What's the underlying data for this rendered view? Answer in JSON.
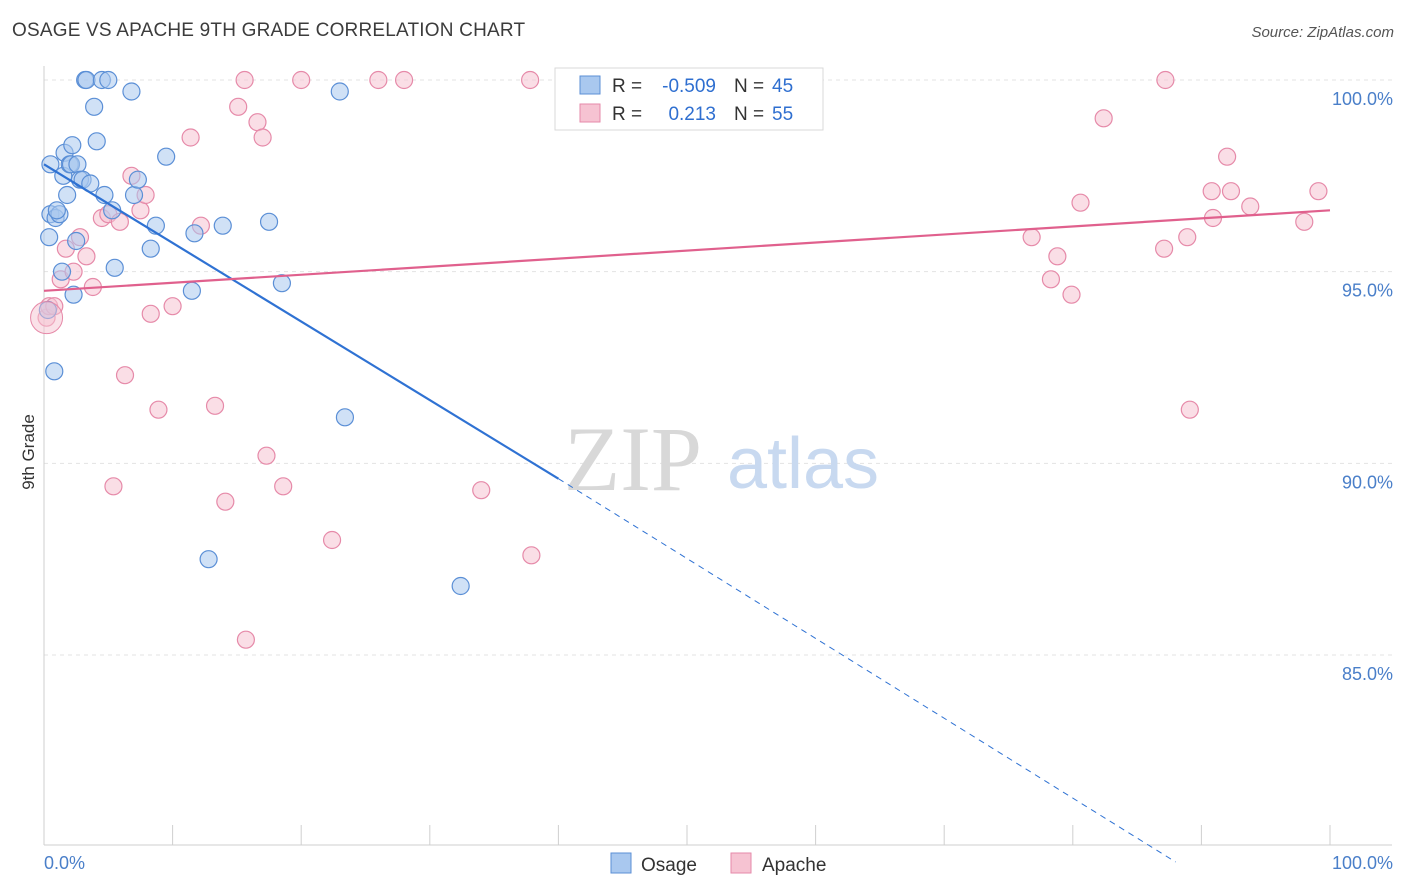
{
  "title": "OSAGE VS APACHE 9TH GRADE CORRELATION CHART",
  "source": "Source: ZipAtlas.com",
  "watermark": {
    "zip": "ZIP",
    "atlas": "atlas"
  },
  "colors": {
    "osage_fill": "#a9c8ef",
    "osage_stroke": "#5b8fd6",
    "osage_line": "#2f72d3",
    "apache_fill": "#f6c3d2",
    "apache_stroke": "#e68aa9",
    "apache_line": "#e0608d",
    "grid": "#e3e3e3",
    "tick_text": "#4a7fc9"
  },
  "legend": {
    "rows": [
      {
        "series": "Osage",
        "r_label": "R =",
        "r_value": "-0.509",
        "n_label": "N =",
        "n_value": "45"
      },
      {
        "series": "Apache",
        "r_label": "R =",
        "r_value": "0.213",
        "n_label": "N =",
        "n_value": "55"
      }
    ]
  },
  "chart_data": {
    "type": "scatter",
    "title": "OSAGE VS APACHE 9TH GRADE CORRELATION CHART",
    "xlabel": "",
    "ylabel": "9th Grade",
    "xlim": [
      0,
      100
    ],
    "ylim": [
      80,
      100.5
    ],
    "x_tick_labels": [
      "0.0%",
      "100.0%"
    ],
    "y_ticks": [
      85,
      90,
      95,
      100
    ],
    "y_tick_labels": [
      "85.0%",
      "90.0%",
      "95.0%",
      "100.0%"
    ],
    "grid": true,
    "series": [
      {
        "name": "Osage",
        "r": -0.509,
        "n": 45,
        "trend": {
          "x0": 0,
          "y0": 97.8,
          "x1": 40,
          "y1": 89.6,
          "dash_x1": 88,
          "dash_y1": 79.6
        },
        "points": [
          [
            0.5,
            97.8
          ],
          [
            0.5,
            96.5
          ],
          [
            0.4,
            95.9
          ],
          [
            0.3,
            94.0
          ],
          [
            0.9,
            96.4
          ],
          [
            1.2,
            96.5
          ],
          [
            1.0,
            96.6
          ],
          [
            1.5,
            97.5
          ],
          [
            1.6,
            98.1
          ],
          [
            2.0,
            97.8
          ],
          [
            2.1,
            97.8
          ],
          [
            2.2,
            98.3
          ],
          [
            1.8,
            97.0
          ],
          [
            2.3,
            94.4
          ],
          [
            2.5,
            95.8
          ],
          [
            2.6,
            97.8
          ],
          [
            2.8,
            97.4
          ],
          [
            3.0,
            97.4
          ],
          [
            3.2,
            100.0
          ],
          [
            3.3,
            100.0
          ],
          [
            3.6,
            97.3
          ],
          [
            3.9,
            99.3
          ],
          [
            4.1,
            98.4
          ],
          [
            4.5,
            100.0
          ],
          [
            4.7,
            97.0
          ],
          [
            5.0,
            100.0
          ],
          [
            5.3,
            96.6
          ],
          [
            5.5,
            95.1
          ],
          [
            6.8,
            99.7
          ],
          [
            7.0,
            97.0
          ],
          [
            7.3,
            97.4
          ],
          [
            8.3,
            95.6
          ],
          [
            8.7,
            96.2
          ],
          [
            9.5,
            98.0
          ],
          [
            11.5,
            94.5
          ],
          [
            11.7,
            96.0
          ],
          [
            12.8,
            87.5
          ],
          [
            13.9,
            96.2
          ],
          [
            17.5,
            96.3
          ],
          [
            18.5,
            94.7
          ],
          [
            23.0,
            99.7
          ],
          [
            23.4,
            91.2
          ],
          [
            32.4,
            86.8
          ],
          [
            0.8,
            92.4
          ],
          [
            1.4,
            95.0
          ]
        ]
      },
      {
        "name": "Apache",
        "r": 0.213,
        "n": 55,
        "trend": {
          "x0": 0,
          "y0": 94.5,
          "x1": 100,
          "y1": 96.6
        },
        "points": [
          [
            0.2,
            93.8
          ],
          [
            0.4,
            94.1
          ],
          [
            0.8,
            94.1
          ],
          [
            1.3,
            94.8
          ],
          [
            1.7,
            95.6
          ],
          [
            2.3,
            95.0
          ],
          [
            2.8,
            95.9
          ],
          [
            3.3,
            95.4
          ],
          [
            3.8,
            94.6
          ],
          [
            4.5,
            96.4
          ],
          [
            5.0,
            96.5
          ],
          [
            5.4,
            89.4
          ],
          [
            5.9,
            96.3
          ],
          [
            6.3,
            92.3
          ],
          [
            6.8,
            97.5
          ],
          [
            7.5,
            96.6
          ],
          [
            7.9,
            97.0
          ],
          [
            8.3,
            93.9
          ],
          [
            8.9,
            91.4
          ],
          [
            10.0,
            94.1
          ],
          [
            11.4,
            98.5
          ],
          [
            12.2,
            96.2
          ],
          [
            13.3,
            91.5
          ],
          [
            14.1,
            89.0
          ],
          [
            15.1,
            99.3
          ],
          [
            15.6,
            100.0
          ],
          [
            15.7,
            85.4
          ],
          [
            16.6,
            98.9
          ],
          [
            17.0,
            98.5
          ],
          [
            17.3,
            90.2
          ],
          [
            18.6,
            89.4
          ],
          [
            20.0,
            100.0
          ],
          [
            22.4,
            88.0
          ],
          [
            26.0,
            100.0
          ],
          [
            28.0,
            100.0
          ],
          [
            34.0,
            89.3
          ],
          [
            37.9,
            87.6
          ],
          [
            37.8,
            100.0
          ],
          [
            76.8,
            95.9
          ],
          [
            78.3,
            94.8
          ],
          [
            78.8,
            95.4
          ],
          [
            79.9,
            94.4
          ],
          [
            80.6,
            96.8
          ],
          [
            82.4,
            99.0
          ],
          [
            87.1,
            95.6
          ],
          [
            87.2,
            100.0
          ],
          [
            88.9,
            95.9
          ],
          [
            89.1,
            91.4
          ],
          [
            90.8,
            97.1
          ],
          [
            90.9,
            96.4
          ],
          [
            92.0,
            98.0
          ],
          [
            92.3,
            97.1
          ],
          [
            93.8,
            96.7
          ],
          [
            98.0,
            96.3
          ],
          [
            99.1,
            97.1
          ]
        ]
      }
    ]
  }
}
